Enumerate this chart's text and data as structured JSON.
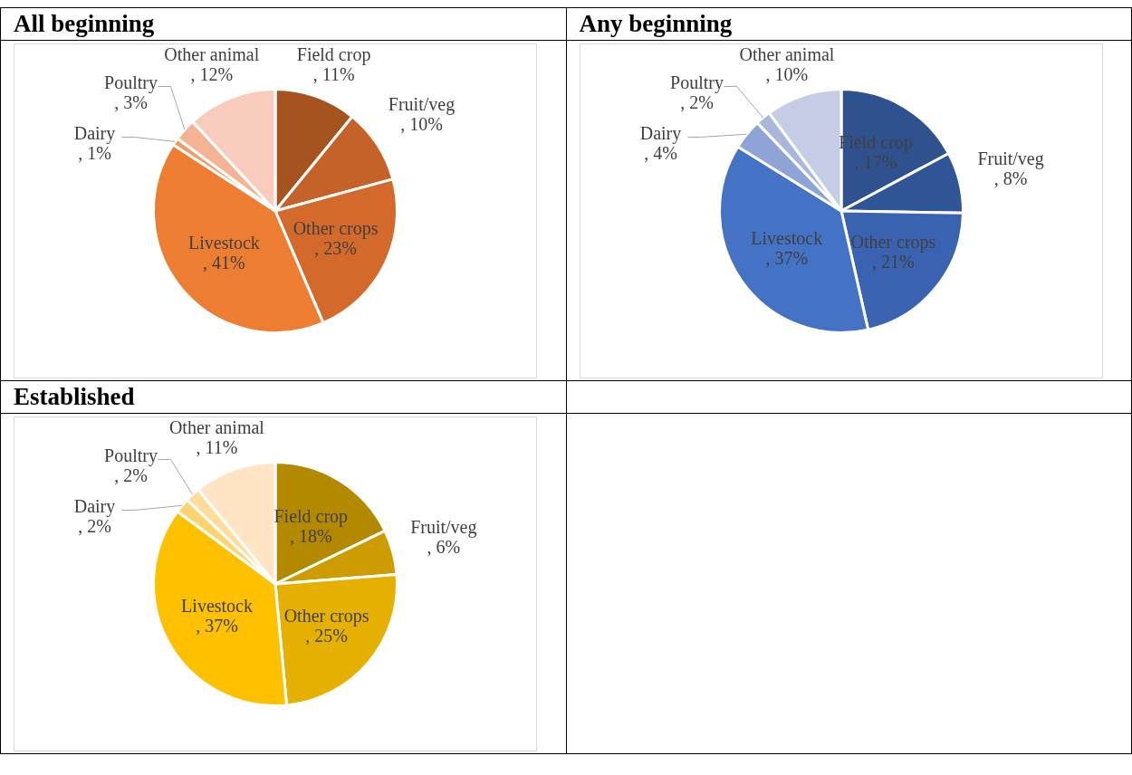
{
  "chart_data": [
    {
      "type": "pie",
      "title": "All beginning",
      "categories": [
        "Field crop",
        "Fruit/veg",
        "Other crops",
        "Livestock",
        "Dairy",
        "Poultry",
        "Other animal"
      ],
      "values": [
        11,
        10,
        23,
        41,
        1,
        3,
        12
      ],
      "value_labels": [
        ", 11%",
        ", 10%",
        ", 23%",
        ", 41%",
        ", 1%",
        ", 3%",
        ", 12%"
      ],
      "colors": [
        "#a5541f",
        "#c5622a",
        "#d4692c",
        "#ed7d31",
        "#f09a6a",
        "#f4b493",
        "#f8cbbd"
      ]
    },
    {
      "type": "pie",
      "title": "Any beginning",
      "categories": [
        "Field crop",
        "Fruit/veg",
        "Other crops",
        "Livestock",
        "Dairy",
        "Poultry",
        "Other animal"
      ],
      "values": [
        17,
        8,
        21,
        37,
        4,
        2,
        10
      ],
      "value_labels": [
        ", 17%",
        ", 8%",
        ", 21%",
        ", 37%",
        ", 4%",
        ", 2%",
        ", 10%"
      ],
      "colors": [
        "#2f528f",
        "#2f5597",
        "#3963b0",
        "#4472c4",
        "#8ea3d6",
        "#a9b6dd",
        "#c5cde6"
      ]
    },
    {
      "type": "pie",
      "title": "Established",
      "categories": [
        "Field crop",
        "Fruit/veg",
        "Other crops",
        "Livestock",
        "Dairy",
        "Poultry",
        "Other animal"
      ],
      "values": [
        18,
        6,
        25,
        37,
        2,
        2,
        11
      ],
      "value_labels": [
        ", 18%",
        ", 6%",
        ", 25%",
        ", 37%",
        ", 2%",
        ", 2%",
        ", 11%"
      ],
      "colors": [
        "#b38900",
        "#cc9c00",
        "#e6b000",
        "#ffc000",
        "#ffd470",
        "#ffdc99",
        "#ffe5c4"
      ]
    }
  ]
}
